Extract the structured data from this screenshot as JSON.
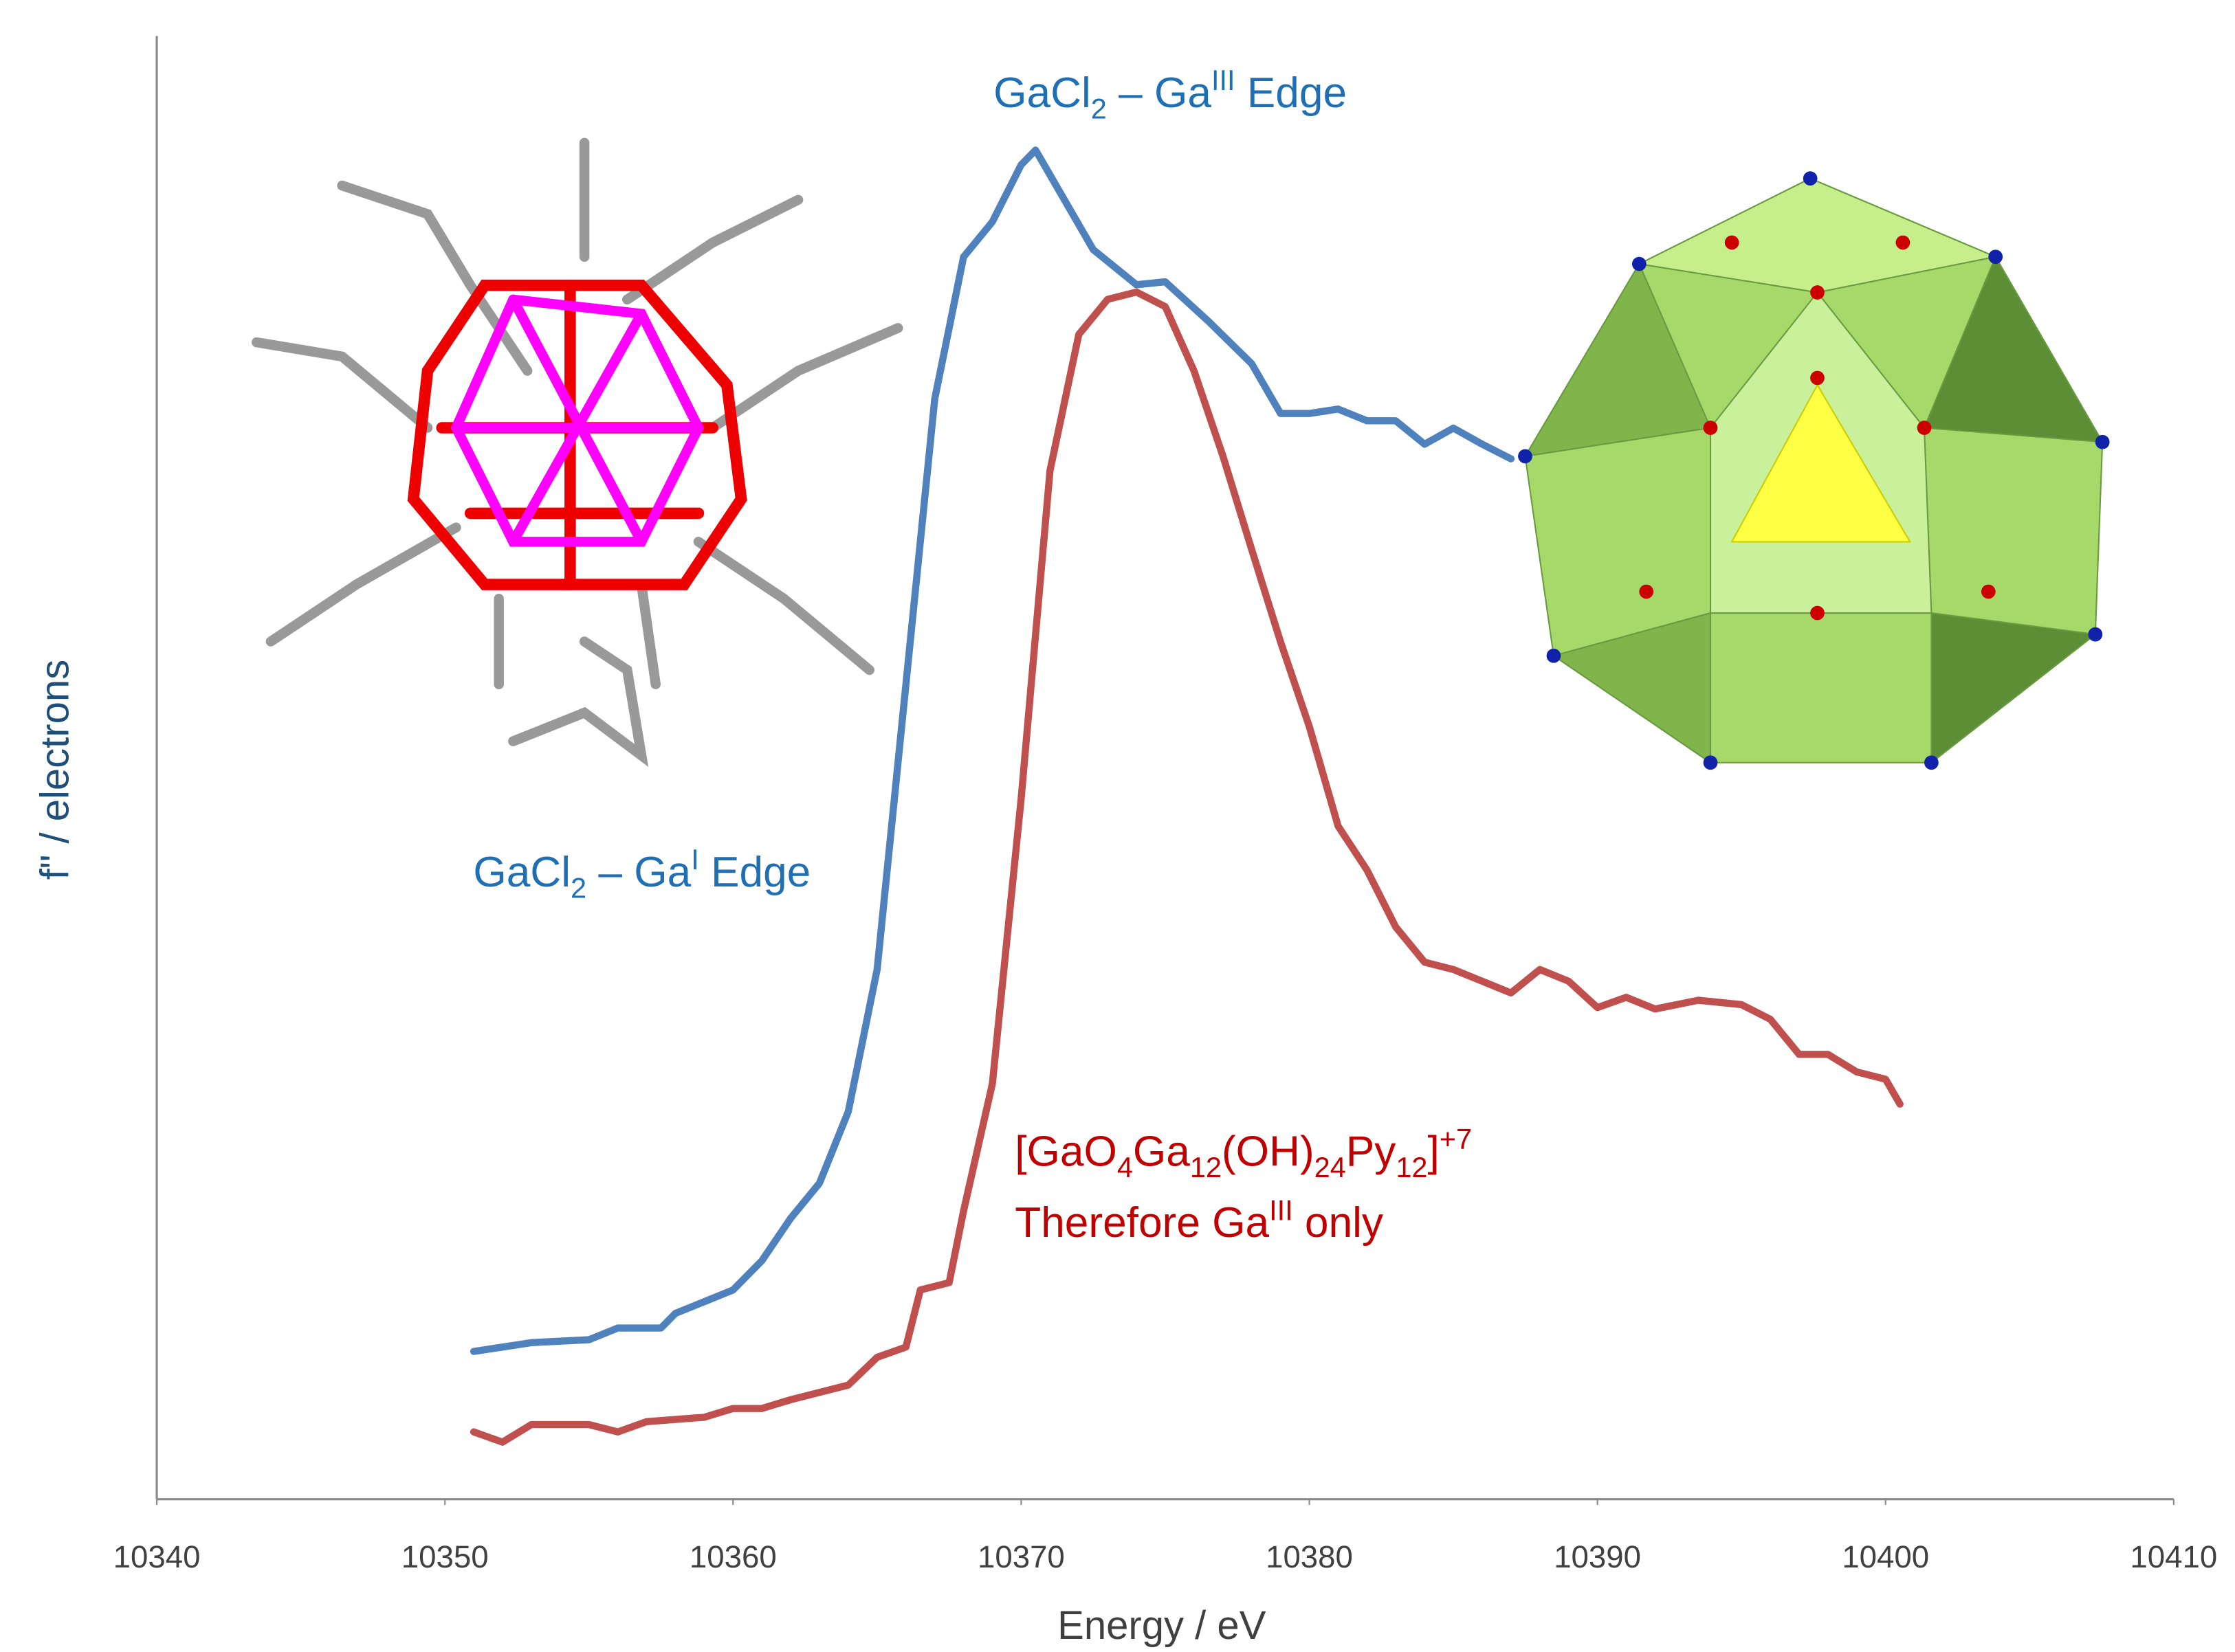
{
  "chart_data": {
    "type": "line",
    "x_label": "Energy / eV",
    "y_label": "f\" / electrons",
    "xlim": [
      10340,
      10410
    ],
    "xticks": [
      10340,
      10350,
      10360,
      10370,
      10380,
      10390,
      10400,
      10410
    ],
    "ylim": [
      0,
      100
    ],
    "series": [
      {
        "color": "#4f81bd",
        "x": [
          10351,
          10353,
          10355,
          10356,
          10357.5,
          10358,
          10360,
          10361,
          10362,
          10363,
          10364,
          10365,
          10366,
          10367,
          10368,
          10369,
          10370,
          10370.5,
          10371.5,
          10372.5,
          10374,
          10375,
          10376.5,
          10378,
          10379,
          10380,
          10381,
          10382,
          10383,
          10384,
          10385,
          10386,
          10387
        ],
        "values": [
          10.1,
          10.7,
          10.9,
          11.7,
          11.7,
          12.7,
          14.3,
          16.3,
          19.2,
          21.6,
          26.5,
          36.2,
          55.7,
          75.2,
          84.9,
          87.3,
          91.2,
          92.2,
          88.8,
          85.4,
          83.0,
          83.2,
          80.5,
          77.6,
          74.2,
          74.2,
          74.5,
          73.7,
          73.7,
          72.1,
          73.2,
          72.1,
          71.1
        ]
      },
      {
        "color": "#c0504d",
        "x": [
          10351,
          10352,
          10353,
          10355,
          10356,
          10357,
          10359,
          10360,
          10361,
          10362,
          10364,
          10365,
          10366,
          10366.5,
          10367.5,
          10368,
          10369,
          10370,
          10371,
          10372,
          10373,
          10374,
          10375,
          10376,
          10377,
          10378,
          10379,
          10380,
          10381,
          10382,
          10383,
          10384,
          10385,
          10386,
          10387,
          10388,
          10389,
          10390,
          10391,
          10392,
          10393.5,
          10395,
          10396,
          10397,
          10398,
          10399,
          10400,
          10400.5
        ],
        "values": [
          4.6,
          3.9,
          5.1,
          5.1,
          4.6,
          5.3,
          5.6,
          6.2,
          6.2,
          6.8,
          7.8,
          9.7,
          10.4,
          14.3,
          14.8,
          19.7,
          28.4,
          47.9,
          70.3,
          79.6,
          82.0,
          82.5,
          81.5,
          77.1,
          71.3,
          64.9,
          58.6,
          52.8,
          46.0,
          43.0,
          39.1,
          36.7,
          36.2,
          35.4,
          34.6,
          36.2,
          35.4,
          33.6,
          34.3,
          33.5,
          34.1,
          33.8,
          32.8,
          30.4,
          30.4,
          29.2,
          28.7,
          27.0
        ]
      }
    ],
    "annotations": [
      [
        "GaCl",
        "2",
        " – Ga",
        "III",
        " Edge"
      ],
      [
        "GaCl",
        "2",
        " – Ga",
        "I",
        " Edge"
      ],
      [
        "[GaO",
        "4",
        "Ga",
        "12",
        "(OH)",
        "24",
        "Py",
        "12",
        "]",
        "+7"
      ],
      [
        "Therefore Ga",
        "III",
        " only"
      ]
    ]
  }
}
